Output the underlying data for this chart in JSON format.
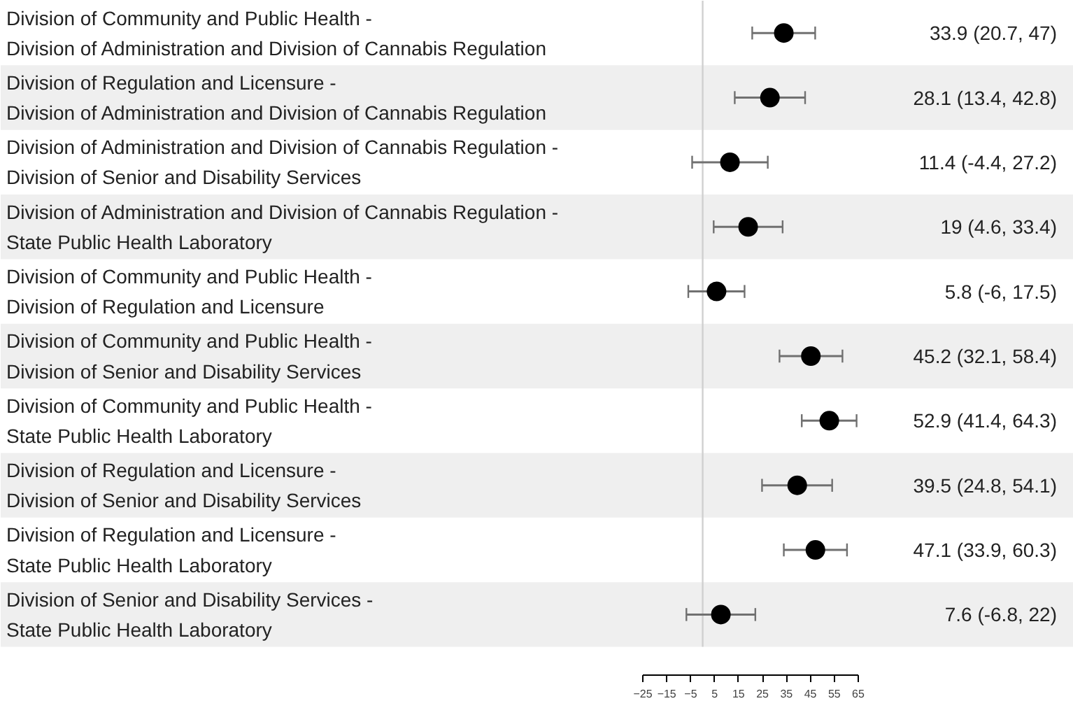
{
  "chart_data": {
    "type": "scatter",
    "categories": [
      "Division of Community and Public Health -\nDivision of Administration and Division of Cannabis Regulation",
      "Division of Regulation and Licensure -\nDivision of Administration and Division of Cannabis Regulation",
      "Division of Administration and Division of Cannabis Regulation -\nDivision of Senior and Disability Services",
      "Division of Administration and Division of Cannabis Regulation -\nState Public Health Laboratory",
      "Division of Community and Public Health -\nDivision of Regulation and Licensure",
      "Division of Community and Public Health -\nDivision of Senior and Disability Services",
      "Division of Community and Public Health -\nState Public Health Laboratory",
      "Division of Regulation and Licensure -\nDivision of Senior and Disability Services",
      "Division of Regulation and Licensure -\nState Public Health Laboratory",
      "Division of Senior and Disability Services -\nState Public Health Laboratory"
    ],
    "orientation": "horizontal",
    "values": [
      33.9,
      28.1,
      11.4,
      19,
      5.8,
      45.2,
      52.9,
      39.5,
      47.1,
      7.6
    ],
    "errors": [
      [
        20.7,
        47
      ],
      [
        13.4,
        42.8
      ],
      [
        -4.4,
        27.2
      ],
      [
        4.6,
        33.4
      ],
      [
        -6,
        17.5
      ],
      [
        32.1,
        58.4
      ],
      [
        41.4,
        64.3
      ],
      [
        24.8,
        54.1
      ],
      [
        33.9,
        60.3
      ],
      [
        -6.8,
        22
      ]
    ],
    "value_labels": [
      "33.9 (20.7, 47)",
      "28.1 (13.4, 42.8)",
      "11.4 (-4.4, 27.2)",
      "19 (4.6, 33.4)",
      "5.8 (-6, 17.5)",
      "45.2 (32.1, 58.4)",
      "52.9 (41.4, 64.3)",
      "39.5 (24.8, 54.1)",
      "47.1 (33.9, 60.3)",
      "7.6 (-6.8, 22)"
    ],
    "color": "#000000",
    "marker": "circle",
    "xlim": [
      -25,
      65
    ],
    "xticks": [
      -25,
      -15,
      -5,
      5,
      15,
      25,
      35,
      45,
      55,
      65
    ],
    "ref_lines": [
      {
        "axis": "x",
        "value": 0,
        "color": "#d0d0d0"
      }
    ],
    "grid": false
  }
}
